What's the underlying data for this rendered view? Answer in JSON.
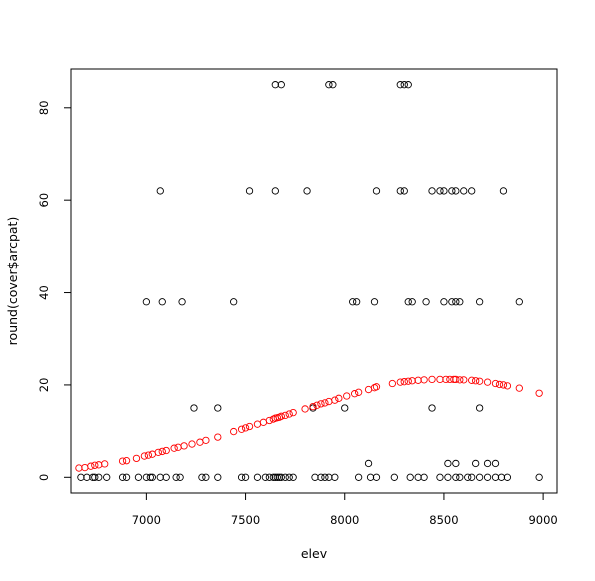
{
  "chart_data": {
    "type": "scatter",
    "title": "",
    "xlabel": "elev",
    "ylabel": "round(cover$arcpat)",
    "xlim": [
      6620,
      9070
    ],
    "ylim": [
      -3.4,
      88.4
    ],
    "xticks": [
      7000,
      7500,
      8000,
      8500,
      9000
    ],
    "yticks": [
      0,
      20,
      40,
      60,
      80
    ],
    "xtick_labels": [
      "7000",
      "7500",
      "8000",
      "8500",
      "9000"
    ],
    "ytick_labels": [
      "0",
      "20",
      "40",
      "60",
      "80"
    ],
    "grid": false,
    "legend": "none",
    "series": [
      {
        "color": "#000000",
        "points": [
          [
            6670,
            0
          ],
          [
            6700,
            0
          ],
          [
            6730,
            0
          ],
          [
            6740,
            0
          ],
          [
            6760,
            0
          ],
          [
            6800,
            0
          ],
          [
            6880,
            0
          ],
          [
            6900,
            0
          ],
          [
            6960,
            0
          ],
          [
            7000,
            0
          ],
          [
            7020,
            0
          ],
          [
            7030,
            0
          ],
          [
            7070,
            0
          ],
          [
            7100,
            0
          ],
          [
            7150,
            0
          ],
          [
            7170,
            0
          ],
          [
            7280,
            0
          ],
          [
            7300,
            0
          ],
          [
            7360,
            0
          ],
          [
            7480,
            0
          ],
          [
            7500,
            0
          ],
          [
            7560,
            0
          ],
          [
            7600,
            0
          ],
          [
            7620,
            0
          ],
          [
            7640,
            0
          ],
          [
            7650,
            0
          ],
          [
            7660,
            0
          ],
          [
            7670,
            0
          ],
          [
            7680,
            0
          ],
          [
            7700,
            0
          ],
          [
            7720,
            0
          ],
          [
            7740,
            0
          ],
          [
            7850,
            0
          ],
          [
            7880,
            0
          ],
          [
            7900,
            0
          ],
          [
            7920,
            0
          ],
          [
            7950,
            0
          ],
          [
            8070,
            0
          ],
          [
            8130,
            0
          ],
          [
            8160,
            0
          ],
          [
            8250,
            0
          ],
          [
            8330,
            0
          ],
          [
            8370,
            0
          ],
          [
            8400,
            0
          ],
          [
            8480,
            0
          ],
          [
            8520,
            0
          ],
          [
            8560,
            0
          ],
          [
            8580,
            0
          ],
          [
            8620,
            0
          ],
          [
            8640,
            0
          ],
          [
            8680,
            0
          ],
          [
            8720,
            0
          ],
          [
            8760,
            0
          ],
          [
            8790,
            0
          ],
          [
            8820,
            0
          ],
          [
            8980,
            0
          ],
          [
            8120,
            3
          ],
          [
            8520,
            3
          ],
          [
            8560,
            3
          ],
          [
            8660,
            3
          ],
          [
            8720,
            3
          ],
          [
            8760,
            3
          ],
          [
            7240,
            15
          ],
          [
            7360,
            15
          ],
          [
            7840,
            15
          ],
          [
            8000,
            15
          ],
          [
            8440,
            15
          ],
          [
            8680,
            15
          ],
          [
            7000,
            38
          ],
          [
            7080,
            38
          ],
          [
            7180,
            38
          ],
          [
            7440,
            38
          ],
          [
            8040,
            38
          ],
          [
            8060,
            38
          ],
          [
            8150,
            38
          ],
          [
            8320,
            38
          ],
          [
            8340,
            38
          ],
          [
            8410,
            38
          ],
          [
            8500,
            38
          ],
          [
            8540,
            38
          ],
          [
            8560,
            38
          ],
          [
            8580,
            38
          ],
          [
            8680,
            38
          ],
          [
            8880,
            38
          ],
          [
            7070,
            62
          ],
          [
            7520,
            62
          ],
          [
            7650,
            62
          ],
          [
            7810,
            62
          ],
          [
            8160,
            62
          ],
          [
            8280,
            62
          ],
          [
            8300,
            62
          ],
          [
            8440,
            62
          ],
          [
            8480,
            62
          ],
          [
            8500,
            62
          ],
          [
            8540,
            62
          ],
          [
            8560,
            62
          ],
          [
            8600,
            62
          ],
          [
            8640,
            62
          ],
          [
            8800,
            62
          ],
          [
            7650,
            85
          ],
          [
            7680,
            85
          ],
          [
            7920,
            85
          ],
          [
            7940,
            85
          ],
          [
            8280,
            85
          ],
          [
            8300,
            85
          ],
          [
            8320,
            85
          ]
        ]
      },
      {
        "color": "#ff0000",
        "points": [
          [
            6660,
            2
          ],
          [
            6690,
            2.1
          ],
          [
            6720,
            2.4
          ],
          [
            6740,
            2.6
          ],
          [
            6760,
            2.7
          ],
          [
            6790,
            2.9
          ],
          [
            6880,
            3.5
          ],
          [
            6900,
            3.6
          ],
          [
            6950,
            4.1
          ],
          [
            6990,
            4.6
          ],
          [
            7010,
            4.8
          ],
          [
            7030,
            5
          ],
          [
            7060,
            5.4
          ],
          [
            7080,
            5.6
          ],
          [
            7100,
            5.8
          ],
          [
            7140,
            6.3
          ],
          [
            7160,
            6.5
          ],
          [
            7190,
            6.8
          ],
          [
            7230,
            7.2
          ],
          [
            7270,
            7.6
          ],
          [
            7300,
            8
          ],
          [
            7360,
            8.7
          ],
          [
            7440,
            9.9
          ],
          [
            7480,
            10.4
          ],
          [
            7500,
            10.7
          ],
          [
            7520,
            11
          ],
          [
            7560,
            11.5
          ],
          [
            7590,
            11.9
          ],
          [
            7620,
            12.3
          ],
          [
            7640,
            12.6
          ],
          [
            7650,
            12.8
          ],
          [
            7660,
            12.9
          ],
          [
            7670,
            13
          ],
          [
            7680,
            13.2
          ],
          [
            7700,
            13.4
          ],
          [
            7720,
            13.7
          ],
          [
            7740,
            14
          ],
          [
            7800,
            14.8
          ],
          [
            7840,
            15.3
          ],
          [
            7860,
            15.6
          ],
          [
            7880,
            15.9
          ],
          [
            7900,
            16.1
          ],
          [
            7920,
            16.4
          ],
          [
            7950,
            16.7
          ],
          [
            7970,
            17.1
          ],
          [
            8010,
            17.6
          ],
          [
            8050,
            18.1
          ],
          [
            8070,
            18.4
          ],
          [
            8120,
            19
          ],
          [
            8150,
            19.4
          ],
          [
            8160,
            19.6
          ],
          [
            8240,
            20.3
          ],
          [
            8280,
            20.6
          ],
          [
            8300,
            20.7
          ],
          [
            8320,
            20.8
          ],
          [
            8340,
            20.9
          ],
          [
            8370,
            21
          ],
          [
            8400,
            21.1
          ],
          [
            8440,
            21.2
          ],
          [
            8480,
            21.2
          ],
          [
            8510,
            21.2
          ],
          [
            8530,
            21.2
          ],
          [
            8550,
            21.2
          ],
          [
            8560,
            21.2
          ],
          [
            8580,
            21.1
          ],
          [
            8600,
            21.1
          ],
          [
            8640,
            21
          ],
          [
            8660,
            20.9
          ],
          [
            8680,
            20.8
          ],
          [
            8720,
            20.6
          ],
          [
            8760,
            20.3
          ],
          [
            8780,
            20.1
          ],
          [
            8800,
            20
          ],
          [
            8820,
            19.8
          ],
          [
            8880,
            19.3
          ],
          [
            8980,
            18.2
          ]
        ]
      }
    ]
  }
}
